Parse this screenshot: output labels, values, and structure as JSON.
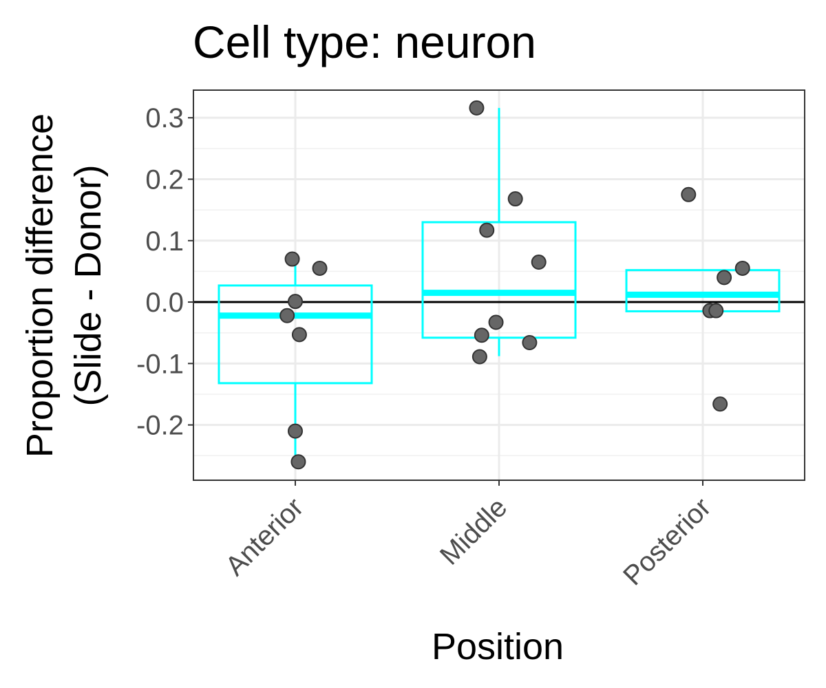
{
  "chart_data": {
    "type": "boxplot",
    "title": "Cell type: neuron",
    "xlabel": "Position",
    "ylabel_lines": [
      "Proportion difference",
      "(Slide - Donor)"
    ],
    "categories": [
      "Anterior",
      "Middle",
      "Posterior"
    ],
    "ylim": [
      -0.29,
      0.345
    ],
    "yticks": [
      -0.2,
      -0.1,
      0.0,
      0.1,
      0.2,
      0.3
    ],
    "ytick_labels": [
      "-0.2",
      "-0.1",
      "0.0",
      "0.1",
      "0.2",
      "0.3"
    ],
    "reference_line": 0.0,
    "grid": true,
    "box_color": "#00ffff",
    "point_color": "#666666",
    "boxes": [
      {
        "category": "Anterior",
        "whisker_low": -0.26,
        "q1": -0.132,
        "median": -0.022,
        "q3": 0.027,
        "whisker_high": 0.07
      },
      {
        "category": "Middle",
        "whisker_low": -0.088,
        "q1": -0.058,
        "median": 0.015,
        "q3": 0.13,
        "whisker_high": 0.316
      },
      {
        "category": "Posterior",
        "whisker_low": -0.015,
        "q1": -0.015,
        "median": 0.012,
        "q3": 0.052,
        "whisker_high": 0.052
      }
    ],
    "points": [
      {
        "category": "Anterior",
        "jitter": -0.03,
        "y": 0.07
      },
      {
        "category": "Anterior",
        "jitter": 0.24,
        "y": 0.055
      },
      {
        "category": "Anterior",
        "jitter": 0.0,
        "y": 0.001
      },
      {
        "category": "Anterior",
        "jitter": -0.08,
        "y": -0.022
      },
      {
        "category": "Anterior",
        "jitter": 0.04,
        "y": -0.053
      },
      {
        "category": "Anterior",
        "jitter": 0.0,
        "y": -0.21
      },
      {
        "category": "Anterior",
        "jitter": 0.03,
        "y": -0.26
      },
      {
        "category": "Middle",
        "jitter": -0.22,
        "y": 0.316
      },
      {
        "category": "Middle",
        "jitter": 0.16,
        "y": 0.168
      },
      {
        "category": "Middle",
        "jitter": -0.12,
        "y": 0.117
      },
      {
        "category": "Middle",
        "jitter": 0.39,
        "y": 0.065
      },
      {
        "category": "Middle",
        "jitter": -0.17,
        "y": -0.054
      },
      {
        "category": "Middle",
        "jitter": -0.03,
        "y": -0.033
      },
      {
        "category": "Middle",
        "jitter": -0.19,
        "y": -0.089
      },
      {
        "category": "Middle",
        "jitter": 0.3,
        "y": -0.066
      },
      {
        "category": "Posterior",
        "jitter": -0.14,
        "y": 0.175
      },
      {
        "category": "Posterior",
        "jitter": 0.39,
        "y": 0.055
      },
      {
        "category": "Posterior",
        "jitter": 0.21,
        "y": 0.04
      },
      {
        "category": "Posterior",
        "jitter": 0.07,
        "y": -0.014
      },
      {
        "category": "Posterior",
        "jitter": 0.13,
        "y": -0.014
      },
      {
        "category": "Posterior",
        "jitter": 0.17,
        "y": -0.166
      }
    ]
  }
}
